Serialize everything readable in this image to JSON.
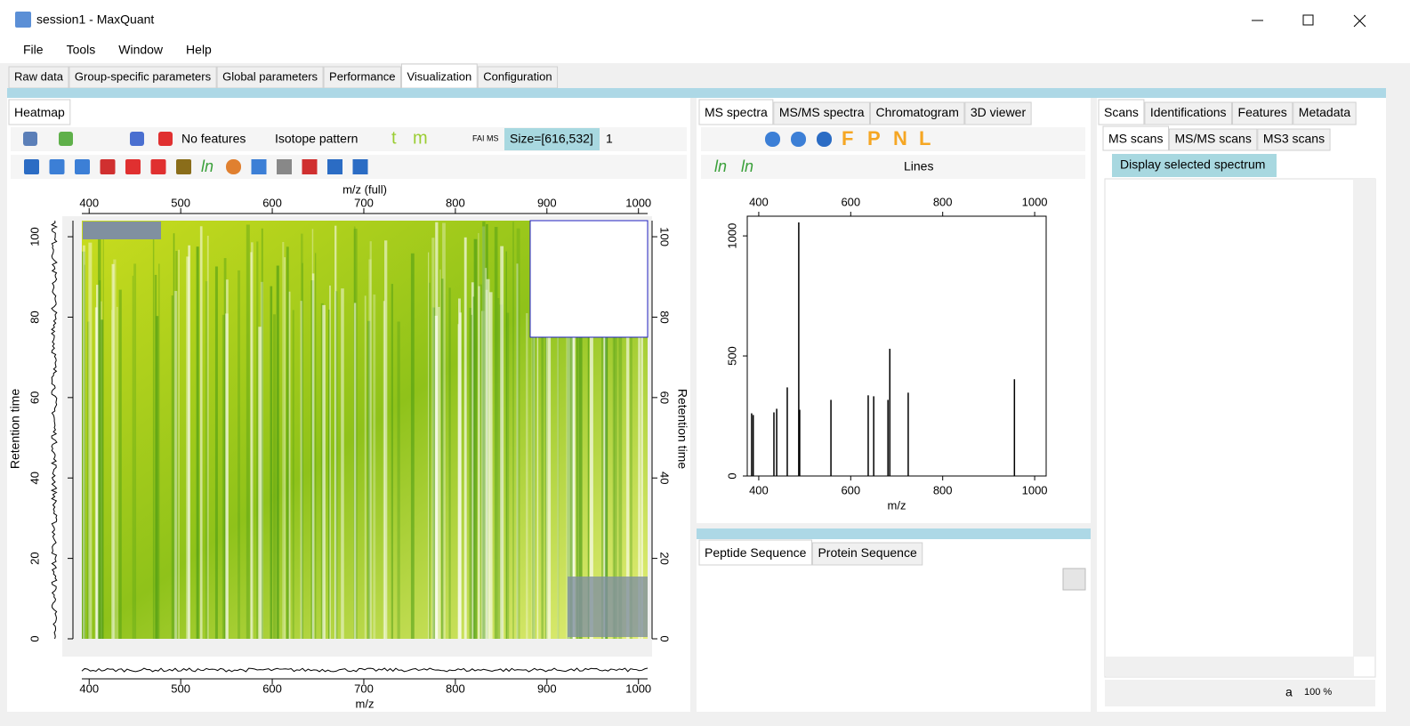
{
  "window": {
    "title": "session1 - MaxQuant"
  },
  "menu": [
    "File",
    "Tools",
    "Window",
    "Help"
  ],
  "main_tabs": {
    "items": [
      "Raw data",
      "Group-specific parameters",
      "Global parameters",
      "Performance",
      "Visualization",
      "Configuration"
    ],
    "active": 4
  },
  "heatmap_panel": {
    "tabs": {
      "items": [
        "Heatmap"
      ],
      "active": 0
    },
    "toolbar": {
      "features": "No features",
      "isotope": "Isotope pattern",
      "size": "Size=[616,532]",
      "index": "1",
      "letters": [
        "t",
        "m"
      ],
      "icon_text": "FAI MS",
      "ln": "ln"
    }
  },
  "heatmap": {
    "type": "heatmap",
    "x_title_top": "m/z (full)",
    "x_title": "m/z",
    "y_title": "Retention time",
    "xlim": [
      392,
      1010
    ],
    "xticks": [
      400,
      500,
      600,
      700,
      800,
      900,
      1000
    ],
    "ylim": [
      0,
      104
    ],
    "yticks": [
      0,
      20,
      40,
      60,
      80,
      100
    ]
  },
  "spectrum_panel": {
    "tabs": {
      "items": [
        "MS spectra",
        "MS/MS spectra",
        "Chromatogram",
        "3D viewer"
      ],
      "active": 0
    },
    "toolbar": {
      "letters": [
        "F",
        "P",
        "N",
        "L"
      ],
      "ln": [
        "ln",
        "ln"
      ],
      "mode": "Lines"
    }
  },
  "spectrum": {
    "type": "stick",
    "x_title": "m/z",
    "x": [
      384.5,
      388,
      433,
      439,
      462,
      487,
      489,
      557,
      638,
      650,
      681,
      685,
      725,
      956
    ],
    "values": [
      261,
      254,
      265,
      280,
      369,
      1056,
      276,
      317,
      336,
      332,
      317,
      530,
      347,
      403
    ],
    "xlim": [
      375,
      1025
    ],
    "xticks": [
      400,
      600,
      800,
      1000
    ],
    "ylim": [
      0,
      1082
    ],
    "yticks": [
      0,
      500,
      1000
    ],
    "color": "#000000"
  },
  "sequence_panel": {
    "tabs": {
      "items": [
        "Peptide Sequence",
        "Protein Sequence"
      ],
      "active": 0
    }
  },
  "scans_panel": {
    "tabs": {
      "items": [
        "Scans",
        "Identifications",
        "Features",
        "Metadata"
      ],
      "active": 0
    },
    "subtabs": {
      "items": [
        "MS scans",
        "MS/MS scans",
        "MS3 scans"
      ],
      "active": 0
    },
    "button": "Display selected spectrum",
    "footer": {
      "font": "a",
      "zoom": "100 %"
    }
  }
}
